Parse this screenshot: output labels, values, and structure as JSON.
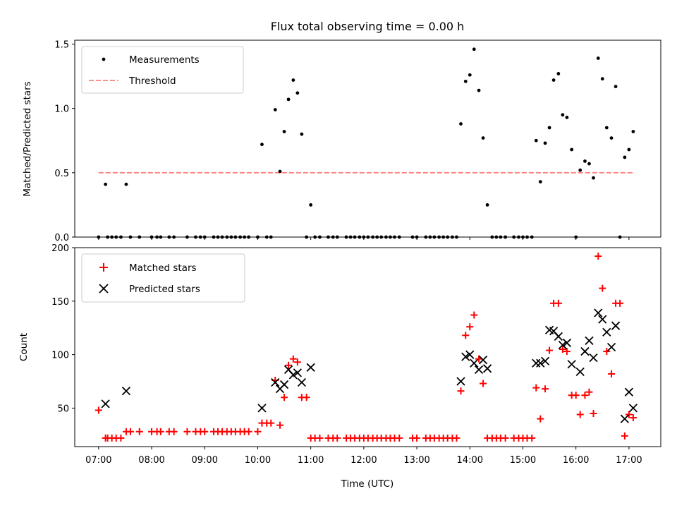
{
  "chart_data": [
    {
      "type": "scatter",
      "title": "Flux total observing time = 0.00 h",
      "xlabel": "",
      "ylabel": "Matched/Predicted stars",
      "xlim": [
        6.55,
        17.6
      ],
      "ylim": [
        0,
        1.53
      ],
      "yticks": [
        0,
        0.5,
        1.0,
        1.5
      ],
      "ytick_labels": [
        "0.0",
        "0.5",
        "1.0",
        "1.5"
      ],
      "legend": [
        "Measurements",
        "Threshold"
      ],
      "legend_position": "top-left",
      "colors": {
        "measurements": "#000000",
        "threshold": "#ff8080"
      },
      "threshold": {
        "name": "Threshold",
        "y": 0.5,
        "x_start": 7.0,
        "x_end": 17.1
      },
      "series": [
        {
          "name": "Measurements",
          "points": [
            [
              7.0,
              0
            ],
            [
              7.13,
              0.41
            ],
            [
              7.17,
              0
            ],
            [
              7.25,
              0
            ],
            [
              7.33,
              0
            ],
            [
              7.42,
              0
            ],
            [
              7.52,
              0.41
            ],
            [
              7.6,
              0
            ],
            [
              7.77,
              0
            ],
            [
              8.0,
              0
            ],
            [
              8.1,
              0
            ],
            [
              8.17,
              0
            ],
            [
              8.33,
              0
            ],
            [
              8.42,
              0
            ],
            [
              8.67,
              0
            ],
            [
              8.83,
              0
            ],
            [
              8.92,
              0
            ],
            [
              9.0,
              0
            ],
            [
              9.17,
              0
            ],
            [
              9.25,
              0
            ],
            [
              9.33,
              0
            ],
            [
              9.42,
              0
            ],
            [
              9.5,
              0
            ],
            [
              9.58,
              0
            ],
            [
              9.67,
              0
            ],
            [
              9.75,
              0
            ],
            [
              9.83,
              0
            ],
            [
              10.0,
              0
            ],
            [
              10.08,
              0.72
            ],
            [
              10.17,
              0
            ],
            [
              10.25,
              0
            ],
            [
              10.33,
              0.99
            ],
            [
              10.42,
              0.51
            ],
            [
              10.5,
              0.82
            ],
            [
              10.58,
              1.07
            ],
            [
              10.67,
              1.22
            ],
            [
              10.75,
              1.12
            ],
            [
              10.83,
              0.8
            ],
            [
              10.92,
              0
            ],
            [
              11.0,
              0.25
            ],
            [
              11.08,
              0
            ],
            [
              11.17,
              0
            ],
            [
              11.33,
              0
            ],
            [
              11.42,
              0
            ],
            [
              11.5,
              0
            ],
            [
              11.67,
              0
            ],
            [
              11.75,
              0
            ],
            [
              11.83,
              0
            ],
            [
              11.92,
              0
            ],
            [
              12.0,
              0
            ],
            [
              12.08,
              0
            ],
            [
              12.17,
              0
            ],
            [
              12.25,
              0
            ],
            [
              12.33,
              0
            ],
            [
              12.42,
              0
            ],
            [
              12.5,
              0
            ],
            [
              12.58,
              0
            ],
            [
              12.67,
              0
            ],
            [
              12.92,
              0
            ],
            [
              13.0,
              0
            ],
            [
              13.17,
              0
            ],
            [
              13.25,
              0
            ],
            [
              13.33,
              0
            ],
            [
              13.42,
              0
            ],
            [
              13.5,
              0
            ],
            [
              13.58,
              0
            ],
            [
              13.67,
              0
            ],
            [
              13.75,
              0
            ],
            [
              13.83,
              0.88
            ],
            [
              13.92,
              1.21
            ],
            [
              14.0,
              1.26
            ],
            [
              14.08,
              1.46
            ],
            [
              14.17,
              1.14
            ],
            [
              14.25,
              0.77
            ],
            [
              14.33,
              0.25
            ],
            [
              14.42,
              0
            ],
            [
              14.5,
              0
            ],
            [
              14.58,
              0
            ],
            [
              14.67,
              0
            ],
            [
              14.83,
              0
            ],
            [
              14.92,
              0
            ],
            [
              15.0,
              0
            ],
            [
              15.08,
              0
            ],
            [
              15.17,
              0
            ],
            [
              15.25,
              0.75
            ],
            [
              15.33,
              0.43
            ],
            [
              15.42,
              0.73
            ],
            [
              15.5,
              0.85
            ],
            [
              15.58,
              1.22
            ],
            [
              15.67,
              1.27
            ],
            [
              15.75,
              0.95
            ],
            [
              15.83,
              0.93
            ],
            [
              15.92,
              0.68
            ],
            [
              16.0,
              0
            ],
            [
              16.08,
              0.52
            ],
            [
              16.17,
              0.59
            ],
            [
              16.25,
              0.57
            ],
            [
              16.33,
              0.46
            ],
            [
              16.42,
              1.39
            ],
            [
              16.5,
              1.23
            ],
            [
              16.58,
              0.85
            ],
            [
              16.67,
              0.77
            ],
            [
              16.75,
              1.17
            ],
            [
              16.83,
              0
            ],
            [
              16.92,
              0.62
            ],
            [
              17.0,
              0.68
            ],
            [
              17.08,
              0.82
            ]
          ]
        }
      ]
    },
    {
      "type": "scatter",
      "title": "",
      "xlabel": "Time (UTC)",
      "ylabel": "Count",
      "xlim": [
        6.55,
        17.6
      ],
      "ylim": [
        14,
        200
      ],
      "yticks": [
        50,
        100,
        150,
        200
      ],
      "ytick_labels": [
        "50",
        "100",
        "150",
        "200"
      ],
      "xticks": [
        7,
        8,
        9,
        10,
        11,
        12,
        13,
        14,
        15,
        16,
        17
      ],
      "xtick_labels": [
        "07:00",
        "08:00",
        "09:00",
        "10:00",
        "11:00",
        "12:00",
        "13:00",
        "14:00",
        "15:00",
        "16:00",
        "17:00"
      ],
      "legend": [
        "Matched stars",
        "Predicted stars"
      ],
      "legend_position": "top-left",
      "colors": {
        "matched": "#ff0000",
        "predicted": "#000000"
      },
      "series": [
        {
          "name": "Matched stars",
          "marker": "plus",
          "points": [
            [
              7.0,
              48
            ],
            [
              7.13,
              22
            ],
            [
              7.17,
              22
            ],
            [
              7.25,
              22
            ],
            [
              7.33,
              22
            ],
            [
              7.42,
              22
            ],
            [
              7.52,
              28
            ],
            [
              7.6,
              28
            ],
            [
              7.77,
              28
            ],
            [
              8.0,
              28
            ],
            [
              8.1,
              28
            ],
            [
              8.17,
              28
            ],
            [
              8.33,
              28
            ],
            [
              8.42,
              28
            ],
            [
              8.67,
              28
            ],
            [
              8.83,
              28
            ],
            [
              8.92,
              28
            ],
            [
              9.0,
              28
            ],
            [
              9.17,
              28
            ],
            [
              9.25,
              28
            ],
            [
              9.33,
              28
            ],
            [
              9.42,
              28
            ],
            [
              9.5,
              28
            ],
            [
              9.58,
              28
            ],
            [
              9.67,
              28
            ],
            [
              9.75,
              28
            ],
            [
              9.83,
              28
            ],
            [
              10.0,
              28
            ],
            [
              10.08,
              36
            ],
            [
              10.17,
              36
            ],
            [
              10.25,
              36
            ],
            [
              10.33,
              76
            ],
            [
              10.42,
              34
            ],
            [
              10.5,
              60
            ],
            [
              10.58,
              90
            ],
            [
              10.67,
              96
            ],
            [
              10.75,
              93
            ],
            [
              10.83,
              60
            ],
            [
              10.92,
              60
            ],
            [
              11.0,
              22
            ],
            [
              11.08,
              22
            ],
            [
              11.17,
              22
            ],
            [
              11.33,
              22
            ],
            [
              11.42,
              22
            ],
            [
              11.5,
              22
            ],
            [
              11.67,
              22
            ],
            [
              11.75,
              22
            ],
            [
              11.83,
              22
            ],
            [
              11.92,
              22
            ],
            [
              12.0,
              22
            ],
            [
              12.08,
              22
            ],
            [
              12.17,
              22
            ],
            [
              12.25,
              22
            ],
            [
              12.33,
              22
            ],
            [
              12.42,
              22
            ],
            [
              12.5,
              22
            ],
            [
              12.58,
              22
            ],
            [
              12.67,
              22
            ],
            [
              12.92,
              22
            ],
            [
              13.0,
              22
            ],
            [
              13.17,
              22
            ],
            [
              13.25,
              22
            ],
            [
              13.33,
              22
            ],
            [
              13.42,
              22
            ],
            [
              13.5,
              22
            ],
            [
              13.58,
              22
            ],
            [
              13.67,
              22
            ],
            [
              13.75,
              22
            ],
            [
              13.83,
              66
            ],
            [
              13.92,
              118
            ],
            [
              14.0,
              126
            ],
            [
              14.08,
              137
            ],
            [
              14.17,
              96
            ],
            [
              14.25,
              73
            ],
            [
              14.33,
              22
            ],
            [
              14.42,
              22
            ],
            [
              14.5,
              22
            ],
            [
              14.58,
              22
            ],
            [
              14.67,
              22
            ],
            [
              14.83,
              22
            ],
            [
              14.92,
              22
            ],
            [
              15.0,
              22
            ],
            [
              15.08,
              22
            ],
            [
              15.17,
              22
            ],
            [
              15.25,
              69
            ],
            [
              15.33,
              40
            ],
            [
              15.42,
              68
            ],
            [
              15.5,
              104
            ],
            [
              15.58,
              148
            ],
            [
              15.67,
              148
            ],
            [
              15.75,
              105
            ],
            [
              15.83,
              103
            ],
            [
              15.92,
              62
            ],
            [
              16.0,
              62
            ],
            [
              16.08,
              44
            ],
            [
              16.17,
              62
            ],
            [
              16.25,
              65
            ],
            [
              16.33,
              45
            ],
            [
              16.42,
              192
            ],
            [
              16.5,
              162
            ],
            [
              16.58,
              103
            ],
            [
              16.67,
              82
            ],
            [
              16.75,
              148
            ],
            [
              16.83,
              148
            ],
            [
              16.92,
              24
            ],
            [
              17.0,
              44
            ],
            [
              17.08,
              41
            ]
          ]
        },
        {
          "name": "Predicted stars",
          "marker": "x",
          "points": [
            [
              7.13,
              54
            ],
            [
              7.52,
              66
            ],
            [
              10.08,
              50
            ],
            [
              10.33,
              74
            ],
            [
              10.42,
              68
            ],
            [
              10.5,
              72
            ],
            [
              10.58,
              86
            ],
            [
              10.67,
              81
            ],
            [
              10.75,
              83
            ],
            [
              10.83,
              74
            ],
            [
              11.0,
              88
            ],
            [
              13.83,
              75
            ],
            [
              13.92,
              98
            ],
            [
              14.0,
              100
            ],
            [
              14.08,
              92
            ],
            [
              14.17,
              86
            ],
            [
              14.25,
              95
            ],
            [
              14.33,
              87
            ],
            [
              15.25,
              92
            ],
            [
              15.33,
              92
            ],
            [
              15.42,
              94
            ],
            [
              15.5,
              123
            ],
            [
              15.58,
              122
            ],
            [
              15.67,
              117
            ],
            [
              15.75,
              109
            ],
            [
              15.83,
              111
            ],
            [
              15.92,
              91
            ],
            [
              16.08,
              84
            ],
            [
              16.17,
              103
            ],
            [
              16.25,
              113
            ],
            [
              16.33,
              97
            ],
            [
              16.42,
              139
            ],
            [
              16.5,
              133
            ],
            [
              16.58,
              121
            ],
            [
              16.67,
              107
            ],
            [
              16.75,
              127
            ],
            [
              16.92,
              40
            ],
            [
              17.0,
              65
            ],
            [
              17.08,
              50
            ]
          ]
        }
      ]
    }
  ]
}
